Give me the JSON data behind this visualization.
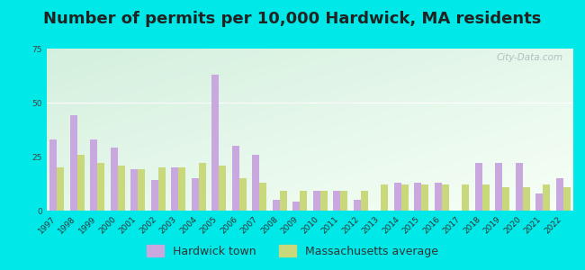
{
  "title": "Number of permits per 10,000 Hardwick, MA residents",
  "years": [
    1997,
    1998,
    1999,
    2000,
    2001,
    2002,
    2003,
    2004,
    2005,
    2006,
    2007,
    2008,
    2009,
    2010,
    2011,
    2012,
    2013,
    2014,
    2015,
    2016,
    2017,
    2018,
    2019,
    2020,
    2021,
    2022
  ],
  "hardwick": [
    33,
    44,
    33,
    29,
    19,
    14,
    20,
    15,
    63,
    30,
    26,
    5,
    4,
    9,
    9,
    5,
    0,
    13,
    13,
    13,
    0,
    22,
    22,
    22,
    8,
    15
  ],
  "ma_avg": [
    20,
    26,
    22,
    21,
    19,
    20,
    20,
    22,
    21,
    15,
    13,
    9,
    9,
    9,
    9,
    9,
    12,
    12,
    12,
    12,
    12,
    12,
    11,
    11,
    12,
    11
  ],
  "hardwick_color": "#c9a8e0",
  "ma_avg_color": "#c8d87a",
  "bg_color_outer": "#00e8e8",
  "ylim": [
    0,
    75
  ],
  "yticks": [
    0,
    25,
    50,
    75
  ],
  "title_fontsize": 13,
  "tick_fontsize": 6.5,
  "legend_fontsize": 9,
  "watermark": "City-Data.com"
}
